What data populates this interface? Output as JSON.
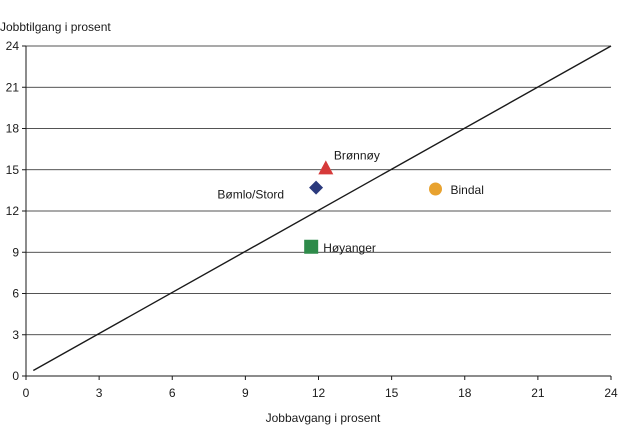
{
  "chart_data": {
    "type": "scatter",
    "ylabel": "Jobbtilgang i prosent",
    "xlabel": "Jobbavgang i prosent",
    "xlim": [
      0,
      24
    ],
    "ylim": [
      0,
      24
    ],
    "x_ticks": [
      0,
      3,
      6,
      9,
      12,
      15,
      18,
      21,
      24
    ],
    "y_ticks": [
      0,
      3,
      6,
      9,
      12,
      15,
      18,
      21,
      24
    ],
    "grid": "horizontal",
    "reference_line": {
      "x": [
        0.3,
        24
      ],
      "y": [
        0.4,
        24
      ]
    },
    "points": [
      {
        "label": "Brønnøy",
        "x": 12.3,
        "y": 15.1,
        "marker": "triangle",
        "color": "#d63a3a"
      },
      {
        "label": "Bømlo/Stord",
        "x": 11.9,
        "y": 13.7,
        "marker": "diamond",
        "color": "#2b3a7d"
      },
      {
        "label": "Bindal",
        "x": 16.8,
        "y": 13.6,
        "marker": "circle",
        "color": "#e8a22f"
      },
      {
        "label": "Høyanger",
        "x": 11.7,
        "y": 9.4,
        "marker": "square",
        "color": "#2e8b4a"
      }
    ]
  }
}
